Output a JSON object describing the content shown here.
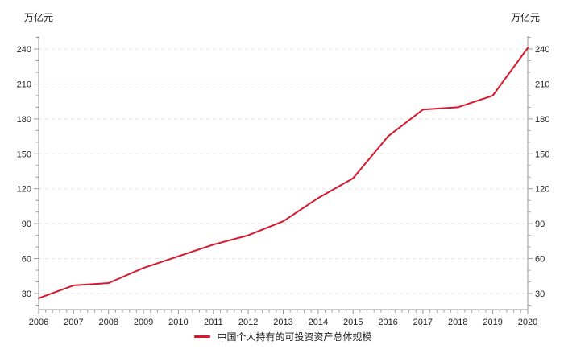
{
  "chart": {
    "unit_left": "万亿元",
    "unit_right": "万亿元"
  },
  "chart_data": {
    "type": "line",
    "title": "",
    "xlabel": "",
    "ylabel": "万亿元",
    "x": [
      2006,
      2007,
      2008,
      2009,
      2010,
      2011,
      2012,
      2013,
      2014,
      2015,
      2016,
      2017,
      2018,
      2019,
      2020
    ],
    "series": [
      {
        "name": "中国个人持有的可投资资产总体规模",
        "values": [
          26,
          37,
          39,
          52,
          62,
          72,
          80,
          92,
          112,
          129,
          165,
          188,
          190,
          200,
          241
        ]
      }
    ],
    "y_ticks_major": [
      30,
      60,
      90,
      120,
      150,
      180,
      210,
      240
    ],
    "y_minor_step": 10,
    "y_minor_range": [
      20,
      250
    ],
    "x_minor_per_year": 4,
    "ylim_ticks": [
      30,
      240
    ],
    "grid": "horizontal-dashed",
    "legend_position": "bottom-center",
    "dual_y_axis": true,
    "colors": {
      "line": "#d7182f",
      "axis": "#999999",
      "grid": "#e4e4e4",
      "text": "#222222"
    }
  }
}
